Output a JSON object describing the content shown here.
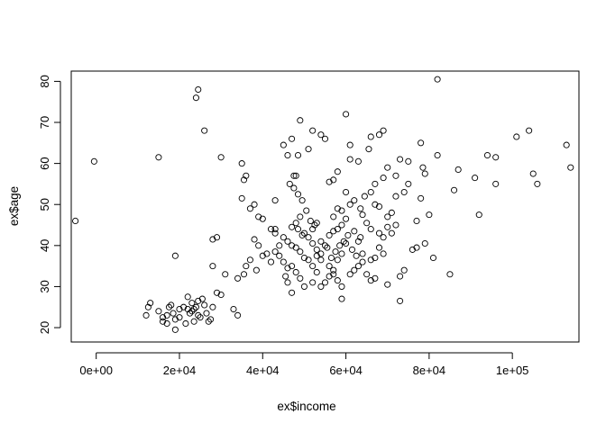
{
  "chart_data": {
    "type": "scatter",
    "title": "",
    "xlabel": "ex$income",
    "ylabel": "ex$age",
    "xlim": [
      -6000,
      116000
    ],
    "ylim": [
      16.5,
      82.5
    ],
    "xticks": [
      0,
      20000,
      40000,
      60000,
      80000,
      100000
    ],
    "xtick_labels": [
      "0e+00",
      "2e+04",
      "4e+04",
      "6e+04",
      "8e+04",
      "1e+05"
    ],
    "yticks": [
      20,
      30,
      40,
      50,
      60,
      70,
      80
    ],
    "ytick_labels": [
      "20",
      "30",
      "40",
      "50",
      "60",
      "70",
      "80"
    ],
    "grid": false,
    "legend": "none",
    "marker": "open-circle",
    "point_color": "#000000",
    "points": [
      [
        -5000,
        46
      ],
      [
        -500,
        60.5
      ],
      [
        15000,
        61.5
      ],
      [
        24000,
        76
      ],
      [
        24500,
        78
      ],
      [
        26000,
        68
      ],
      [
        30000,
        61.5
      ],
      [
        29000,
        42
      ],
      [
        28000,
        41.5
      ],
      [
        19000,
        37.5
      ],
      [
        28000,
        35
      ],
      [
        31000,
        33
      ],
      [
        30000,
        28
      ],
      [
        33000,
        24.5
      ],
      [
        34000,
        23
      ],
      [
        12000,
        23
      ],
      [
        12500,
        25
      ],
      [
        13000,
        26
      ],
      [
        15000,
        24
      ],
      [
        16000,
        22.5
      ],
      [
        16000,
        21.5
      ],
      [
        17000,
        21
      ],
      [
        17000,
        23
      ],
      [
        17500,
        25
      ],
      [
        18000,
        25.5
      ],
      [
        18500,
        23.5
      ],
      [
        19000,
        22
      ],
      [
        19000,
        19.5
      ],
      [
        20000,
        24.5
      ],
      [
        20000,
        22.5
      ],
      [
        21000,
        25
      ],
      [
        21500,
        21
      ],
      [
        22000,
        24.5
      ],
      [
        22000,
        27.5
      ],
      [
        22500,
        23.5
      ],
      [
        23000,
        24
      ],
      [
        23000,
        26
      ],
      [
        23500,
        24.5
      ],
      [
        23500,
        21.5
      ],
      [
        24000,
        25
      ],
      [
        24500,
        23
      ],
      [
        24500,
        26.5
      ],
      [
        25000,
        22.5
      ],
      [
        25500,
        27
      ],
      [
        26000,
        25.5
      ],
      [
        26500,
        23.5
      ],
      [
        27000,
        21.5
      ],
      [
        27500,
        22
      ],
      [
        28000,
        25
      ],
      [
        29000,
        28.5
      ],
      [
        35000,
        60
      ],
      [
        36000,
        57
      ],
      [
        35500,
        56
      ],
      [
        35000,
        51.5
      ],
      [
        37000,
        49
      ],
      [
        38000,
        50
      ],
      [
        39000,
        47
      ],
      [
        40000,
        46.5
      ],
      [
        42000,
        44
      ],
      [
        43000,
        44
      ],
      [
        38000,
        41.5
      ],
      [
        39000,
        40
      ],
      [
        40000,
        37.5
      ],
      [
        41000,
        38
      ],
      [
        42000,
        36
      ],
      [
        37000,
        36.5
      ],
      [
        36000,
        35
      ],
      [
        34000,
        32
      ],
      [
        35500,
        33
      ],
      [
        38500,
        34
      ],
      [
        43000,
        51
      ],
      [
        45000,
        64.5
      ],
      [
        47000,
        66
      ],
      [
        46000,
        62
      ],
      [
        48500,
        62
      ],
      [
        49000,
        70.5
      ],
      [
        48000,
        57
      ],
      [
        47500,
        57
      ],
      [
        51000,
        63.5
      ],
      [
        52000,
        68
      ],
      [
        54000,
        67
      ],
      [
        55000,
        66
      ],
      [
        56000,
        55.5
      ],
      [
        57000,
        56
      ],
      [
        58000,
        58
      ],
      [
        59000,
        48.5
      ],
      [
        58000,
        49
      ],
      [
        57000,
        47
      ],
      [
        60000,
        72
      ],
      [
        61000,
        64.5
      ],
      [
        61000,
        61
      ],
      [
        63000,
        60.5
      ],
      [
        66000,
        66.5
      ],
      [
        68000,
        67
      ],
      [
        69000,
        68
      ],
      [
        66000,
        53
      ],
      [
        67000,
        55
      ],
      [
        69000,
        56.5
      ],
      [
        70000,
        59
      ],
      [
        72000,
        57
      ],
      [
        73000,
        61
      ],
      [
        75000,
        60.5
      ],
      [
        74000,
        53
      ],
      [
        72000,
        52
      ],
      [
        75000,
        55
      ],
      [
        77000,
        46
      ],
      [
        78000,
        51.5
      ],
      [
        78000,
        65
      ],
      [
        78500,
        59
      ],
      [
        79000,
        57.5
      ],
      [
        82000,
        62
      ],
      [
        82000,
        80.5
      ],
      [
        80000,
        47.5
      ],
      [
        79000,
        40.5
      ],
      [
        81000,
        37
      ],
      [
        77000,
        39.5
      ],
      [
        76000,
        39
      ],
      [
        74000,
        34
      ],
      [
        73000,
        32.5
      ],
      [
        73000,
        26.5
      ],
      [
        70000,
        30.5
      ],
      [
        69000,
        38
      ],
      [
        68000,
        39.5
      ],
      [
        67000,
        37
      ],
      [
        66000,
        36.5
      ],
      [
        64000,
        38
      ],
      [
        63000,
        41
      ],
      [
        62000,
        43.5
      ],
      [
        65000,
        45.5
      ],
      [
        64000,
        47.5
      ],
      [
        66000,
        44
      ],
      [
        68000,
        43
      ],
      [
        69000,
        42
      ],
      [
        70000,
        44.5
      ],
      [
        71000,
        43
      ],
      [
        60000,
        40.5
      ],
      [
        59000,
        38
      ],
      [
        58000,
        36.5
      ],
      [
        57000,
        34
      ],
      [
        56000,
        32.5
      ],
      [
        55000,
        31
      ],
      [
        54000,
        30
      ],
      [
        53000,
        33.5
      ],
      [
        52000,
        35
      ],
      [
        51000,
        36.5
      ],
      [
        50000,
        37
      ],
      [
        49000,
        38.5
      ],
      [
        48000,
        39.5
      ],
      [
        47000,
        40
      ],
      [
        46000,
        41
      ],
      [
        45000,
        42
      ],
      [
        44000,
        40
      ],
      [
        43000,
        43
      ],
      [
        47000,
        44.5
      ],
      [
        48000,
        45.5
      ],
      [
        49000,
        47
      ],
      [
        50000,
        43
      ],
      [
        51000,
        42
      ],
      [
        52000,
        44
      ],
      [
        53000,
        45.5
      ],
      [
        54000,
        41
      ],
      [
        55000,
        40
      ],
      [
        56000,
        42.5
      ],
      [
        57000,
        43.5
      ],
      [
        58000,
        44
      ],
      [
        59000,
        45
      ],
      [
        60000,
        46.5
      ],
      [
        61000,
        50
      ],
      [
        62000,
        51
      ],
      [
        60000,
        53
      ],
      [
        59000,
        27
      ],
      [
        61000,
        33
      ],
      [
        62000,
        34
      ],
      [
        63000,
        35
      ],
      [
        64000,
        36
      ],
      [
        65000,
        33
      ],
      [
        66000,
        31.5
      ],
      [
        67000,
        32
      ],
      [
        50000,
        30
      ],
      [
        49000,
        32
      ],
      [
        48000,
        33.5
      ],
      [
        47000,
        35
      ],
      [
        46000,
        34.5
      ],
      [
        45000,
        36
      ],
      [
        44000,
        37.5
      ],
      [
        43000,
        38.5
      ],
      [
        45500,
        32.5
      ],
      [
        46000,
        31
      ],
      [
        47000,
        28.5
      ],
      [
        52000,
        31
      ],
      [
        53000,
        37.5
      ],
      [
        54000,
        38
      ],
      [
        55500,
        39.5
      ],
      [
        56500,
        37
      ],
      [
        57500,
        38.5
      ],
      [
        58500,
        40
      ],
      [
        59500,
        41
      ],
      [
        60500,
        42.5
      ],
      [
        61500,
        39
      ],
      [
        62500,
        37.5
      ],
      [
        63500,
        42
      ],
      [
        52500,
        45
      ],
      [
        51500,
        46
      ],
      [
        50500,
        48.5
      ],
      [
        49500,
        51
      ],
      [
        48500,
        52.5
      ],
      [
        47500,
        54
      ],
      [
        46500,
        55
      ],
      [
        49500,
        42.5
      ],
      [
        48500,
        44
      ],
      [
        52000,
        40.5
      ],
      [
        53000,
        39
      ],
      [
        54000,
        36.5
      ],
      [
        56000,
        35
      ],
      [
        57000,
        33
      ],
      [
        58000,
        31.5
      ],
      [
        59000,
        30
      ],
      [
        67000,
        50
      ],
      [
        68000,
        49.5
      ],
      [
        71000,
        48
      ],
      [
        70000,
        47
      ],
      [
        72000,
        45
      ],
      [
        85000,
        33
      ],
      [
        86000,
        53.5
      ],
      [
        87000,
        58.5
      ],
      [
        91000,
        56.5
      ],
      [
        92000,
        47.5
      ],
      [
        94000,
        62
      ],
      [
        96000,
        61.5
      ],
      [
        96000,
        55
      ],
      [
        101000,
        66.5
      ],
      [
        104000,
        68
      ],
      [
        105000,
        57.5
      ],
      [
        106000,
        55
      ],
      [
        113000,
        64.5
      ],
      [
        114000,
        59
      ],
      [
        65500,
        63.5
      ],
      [
        64500,
        52
      ],
      [
        63500,
        49
      ]
    ]
  }
}
